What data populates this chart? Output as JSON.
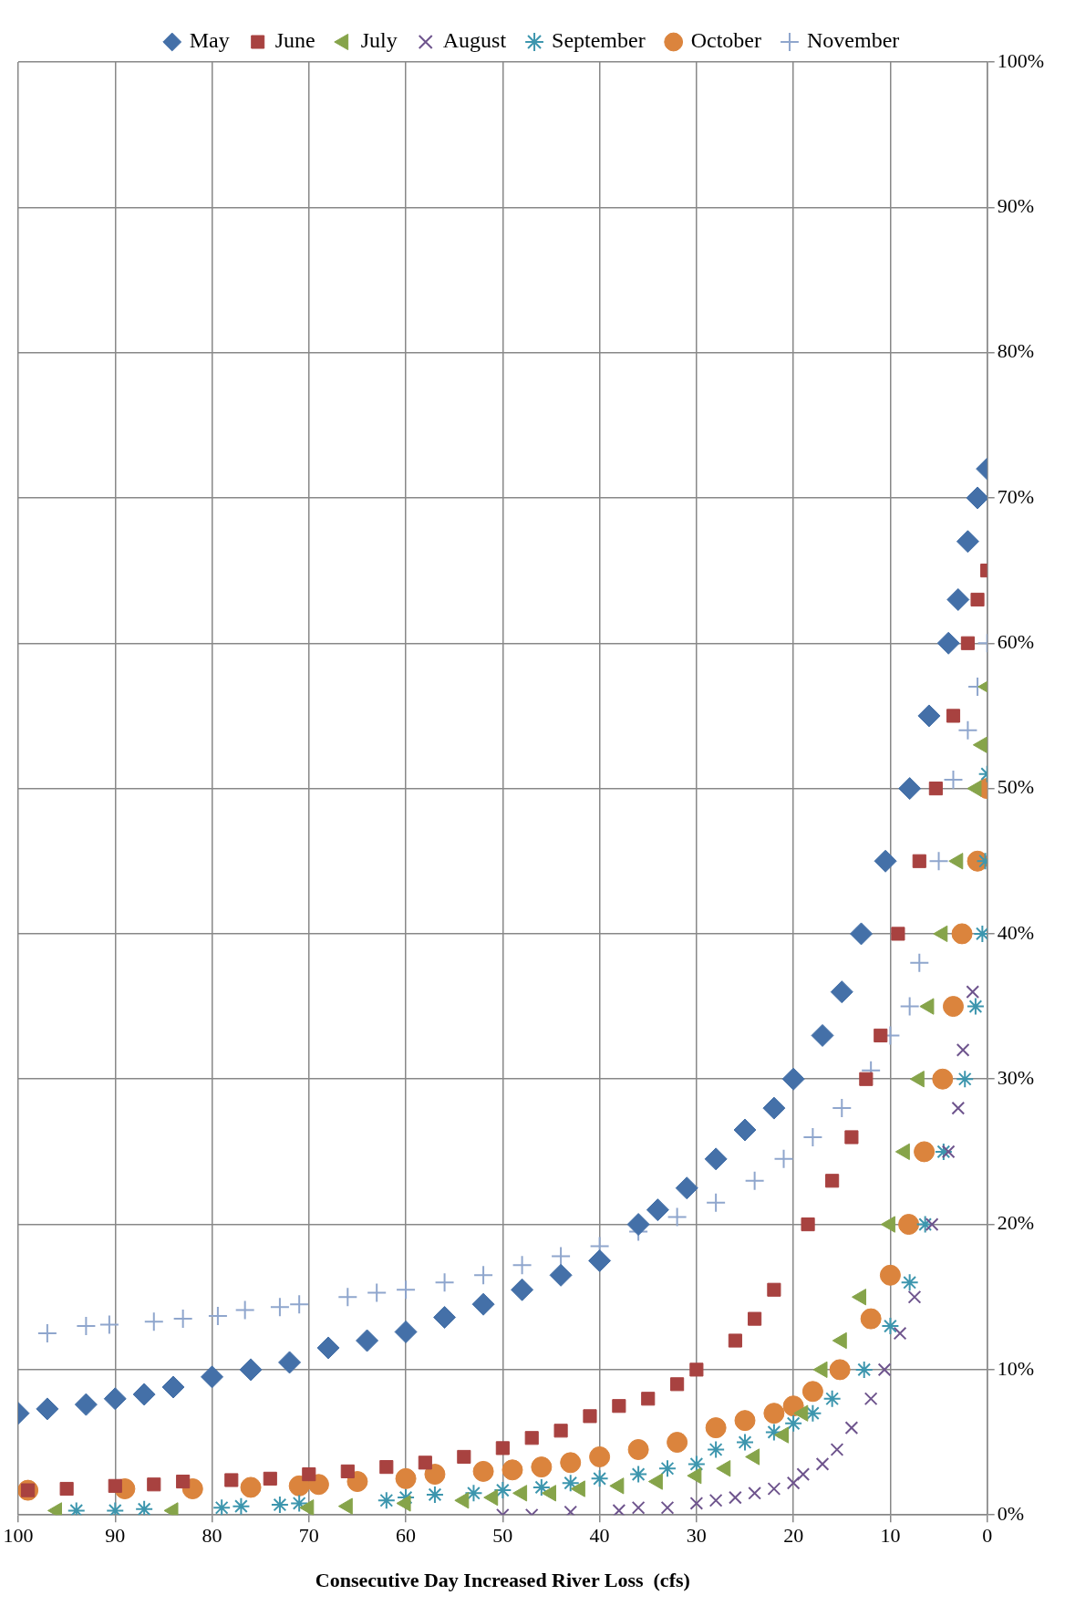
{
  "chart_data": {
    "type": "scatter",
    "xlabel": "Consecutive Day Increased River Loss  (cfs)",
    "xlim": [
      100,
      0
    ],
    "xticks": [
      100,
      90,
      80,
      70,
      60,
      50,
      40,
      30,
      20,
      10,
      0
    ],
    "ylim": [
      0,
      100
    ],
    "yticks": [
      {
        "value": 0,
        "label": "0%"
      },
      {
        "value": 10,
        "label": "10%"
      },
      {
        "value": 20,
        "label": "20%"
      },
      {
        "value": 30,
        "label": "30%"
      },
      {
        "value": 40,
        "label": "40%"
      },
      {
        "value": 50,
        "label": "50%"
      },
      {
        "value": 60,
        "label": "60%"
      },
      {
        "value": 70,
        "label": "70%"
      },
      {
        "value": 80,
        "label": "80%"
      },
      {
        "value": 90,
        "label": "90%"
      },
      {
        "value": 100,
        "label": "100%"
      }
    ],
    "grid": true,
    "legend": "top",
    "series": [
      {
        "name": "May",
        "color": "#4470a8",
        "marker": "diamond",
        "x": [
          100,
          97,
          93,
          90,
          87,
          84,
          80,
          76,
          72,
          68,
          64,
          60,
          56,
          52,
          48,
          44,
          40,
          36,
          34,
          31,
          28,
          25,
          22,
          20,
          17,
          15,
          13,
          10.5,
          8,
          6,
          4,
          3,
          2,
          1,
          0
        ],
        "values": [
          7,
          7.3,
          7.6,
          8,
          8.3,
          8.8,
          9.5,
          10,
          10.5,
          11.5,
          12,
          12.6,
          13.6,
          14.5,
          15.5,
          16.5,
          17.5,
          20,
          21,
          22.5,
          24.5,
          26.5,
          28,
          30,
          33,
          36,
          40,
          45,
          50,
          55,
          60,
          63,
          67,
          70,
          72
        ]
      },
      {
        "name": "June",
        "color": "#a84240",
        "marker": "square",
        "x": [
          99,
          95,
          90,
          86,
          83,
          78,
          74,
          70,
          66,
          62,
          58,
          54,
          50,
          47,
          44,
          41,
          38,
          35,
          32,
          30,
          26,
          24,
          22,
          18.5,
          16,
          14,
          12.5,
          11,
          9.2,
          7,
          5.3,
          3.5,
          2,
          1,
          0
        ],
        "values": [
          1.7,
          1.8,
          2,
          2.1,
          2.3,
          2.4,
          2.5,
          2.8,
          3,
          3.3,
          3.6,
          4,
          4.6,
          5.3,
          5.8,
          6.8,
          7.5,
          8,
          9,
          10,
          12,
          13.5,
          15.5,
          20,
          23,
          26,
          30,
          33,
          40,
          45,
          50,
          55,
          60,
          63,
          65
        ]
      },
      {
        "name": "July",
        "color": "#86a44a",
        "marker": "triangle",
        "x": [
          96,
          84,
          70,
          66,
          60,
          54,
          51,
          48,
          45,
          42,
          38,
          34,
          30,
          27,
          24,
          21,
          19,
          17,
          15,
          13,
          10,
          8.5,
          7,
          6,
          4.6,
          3,
          1.1,
          0.5,
          0
        ],
        "values": [
          0.3,
          0.3,
          0.5,
          0.6,
          0.8,
          1,
          1.2,
          1.5,
          1.5,
          1.8,
          2,
          2.3,
          2.7,
          3.2,
          4,
          5.5,
          7,
          10,
          12,
          15,
          20,
          25,
          30,
          35,
          40,
          45,
          50,
          53,
          57
        ]
      },
      {
        "name": "August",
        "color": "#6e548d",
        "marker": "x",
        "x": [
          50,
          47,
          43,
          38,
          36,
          33,
          30,
          28,
          26,
          24,
          22,
          20,
          19,
          17,
          15.5,
          14,
          12,
          10.6,
          9,
          7.5,
          5.7,
          4,
          3,
          2.5,
          1.5
        ],
        "values": [
          0,
          0,
          0.2,
          0.3,
          0.5,
          0.5,
          0.8,
          1,
          1.2,
          1.5,
          1.8,
          2.2,
          2.8,
          3.5,
          4.5,
          6,
          8,
          10,
          12.5,
          15,
          20,
          25,
          28,
          32,
          36
        ]
      },
      {
        "name": "September",
        "color": "#3d96ae",
        "x": [
          94,
          90,
          87,
          79,
          77,
          73,
          71,
          62,
          60,
          57,
          53,
          50,
          46,
          43,
          40,
          36,
          33,
          30,
          28,
          25,
          22,
          20,
          18,
          16,
          12.7,
          10,
          8,
          6.4,
          4.5,
          2.3,
          1.2,
          0.5,
          0.2,
          0
        ],
        "values": [
          0.3,
          0.3,
          0.4,
          0.5,
          0.6,
          0.7,
          0.8,
          1,
          1.2,
          1.4,
          1.5,
          1.7,
          1.9,
          2.2,
          2.5,
          2.8,
          3.2,
          3.5,
          4.5,
          5,
          5.7,
          6.3,
          7,
          8,
          10,
          13,
          16,
          20,
          25,
          30,
          35,
          40,
          45,
          51
        ]
      },
      {
        "name": "October",
        "color": "#db843d",
        "marker": "circle",
        "x": [
          99,
          89,
          82,
          76,
          71,
          69,
          65,
          60,
          57,
          52,
          49,
          46,
          43,
          40,
          36,
          32,
          28,
          25,
          22,
          20,
          18,
          15.2,
          12,
          10,
          8.1,
          6.5,
          4.6,
          3.5,
          2.6,
          1,
          0
        ],
        "values": [
          1.7,
          1.8,
          1.8,
          1.9,
          2,
          2.1,
          2.3,
          2.5,
          2.8,
          3,
          3.1,
          3.3,
          3.6,
          4,
          4.5,
          5,
          6,
          6.5,
          7,
          7.5,
          8.5,
          10,
          13.5,
          16.5,
          20,
          25,
          30,
          35,
          40,
          45,
          50
        ]
      },
      {
        "name": "November",
        "color": "#8fa6cd",
        "marker": "cross",
        "x": [
          97,
          93,
          90.6,
          86,
          83,
          79.4,
          76.6,
          73,
          71,
          66,
          63,
          60,
          56,
          52,
          48,
          44,
          40,
          36,
          32,
          28,
          24,
          21,
          18,
          15,
          12,
          10,
          8,
          7,
          5,
          3.5,
          2,
          1,
          0
        ],
        "values": [
          12.5,
          13,
          13.1,
          13.3,
          13.5,
          13.7,
          14.1,
          14.3,
          14.5,
          15,
          15.3,
          15.5,
          16,
          16.5,
          17.2,
          17.8,
          18.5,
          19.5,
          20.5,
          21.5,
          23,
          24.5,
          26,
          28,
          30.6,
          33,
          35,
          38,
          45,
          50.6,
          54,
          57,
          60
        ]
      }
    ]
  }
}
